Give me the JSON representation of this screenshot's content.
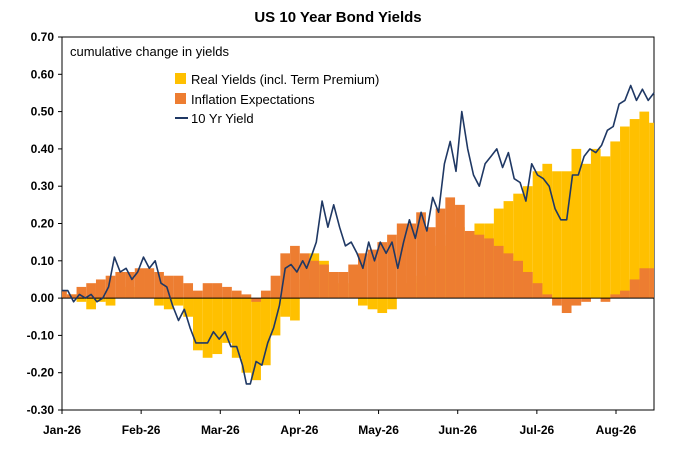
{
  "chart_data": {
    "type": "area",
    "title": "US 10 Year Bond Yields",
    "annotation": "cumulative change in yields",
    "xlabel": "",
    "ylabel": "",
    "ylim": [
      -0.3,
      0.7
    ],
    "yticks": [
      "-0.30",
      "-0.20",
      "-0.10",
      "0.00",
      "0.10",
      "0.20",
      "0.30",
      "0.40",
      "0.50",
      "0.60",
      "0.70"
    ],
    "xticks": [
      "Jan-26",
      "Feb-26",
      "Mar-26",
      "Apr-26",
      "May-26",
      "Jun-26",
      "Jul-26",
      "Aug-26"
    ],
    "grid": false,
    "legend_position": "top-center",
    "colors": {
      "real": "#FFC000",
      "inflation": "#ED7D31",
      "yield": "#1F3864"
    },
    "series": [
      {
        "name": "Real Yields (incl. Term Premium)",
        "kind": "bar",
        "points": [
          [
            0,
            0.0
          ],
          [
            5,
            0.01
          ],
          [
            10,
            -0.01
          ],
          [
            15,
            -0.03
          ],
          [
            20,
            -0.01
          ],
          [
            25,
            -0.02
          ],
          [
            30,
            0.0
          ],
          [
            35,
            0.03
          ],
          [
            40,
            0.02
          ],
          [
            45,
            0.0
          ],
          [
            50,
            -0.02
          ],
          [
            55,
            -0.03
          ],
          [
            60,
            -0.02
          ],
          [
            65,
            -0.05
          ],
          [
            70,
            -0.14
          ],
          [
            75,
            -0.16
          ],
          [
            80,
            -0.15
          ],
          [
            85,
            -0.12
          ],
          [
            90,
            -0.16
          ],
          [
            95,
            -0.2
          ],
          [
            100,
            -0.22
          ],
          [
            105,
            -0.18
          ],
          [
            110,
            -0.1
          ],
          [
            115,
            -0.05
          ],
          [
            120,
            -0.06
          ],
          [
            125,
            0.05
          ],
          [
            130,
            0.12
          ],
          [
            135,
            0.1
          ],
          [
            140,
            0.04
          ],
          [
            145,
            0.04
          ],
          [
            150,
            0.0
          ],
          [
            155,
            -0.02
          ],
          [
            160,
            -0.03
          ],
          [
            165,
            -0.04
          ],
          [
            170,
            -0.03
          ],
          [
            175,
            0.0
          ],
          [
            180,
            0.04
          ],
          [
            185,
            0.06
          ],
          [
            190,
            0.1
          ],
          [
            195,
            0.14
          ],
          [
            200,
            0.17
          ],
          [
            205,
            0.19
          ],
          [
            210,
            0.17
          ],
          [
            215,
            0.2
          ],
          [
            220,
            0.2
          ],
          [
            225,
            0.24
          ],
          [
            230,
            0.26
          ],
          [
            235,
            0.28
          ],
          [
            240,
            0.3
          ],
          [
            245,
            0.34
          ],
          [
            250,
            0.36
          ],
          [
            255,
            0.34
          ],
          [
            260,
            0.34
          ],
          [
            265,
            0.4
          ],
          [
            270,
            0.36
          ],
          [
            275,
            0.4
          ],
          [
            280,
            0.38
          ],
          [
            285,
            0.42
          ],
          [
            290,
            0.46
          ],
          [
            295,
            0.48
          ],
          [
            300,
            0.5
          ],
          [
            305,
            0.47
          ]
        ]
      },
      {
        "name": "Inflation Expectations",
        "kind": "bar",
        "points": [
          [
            0,
            0.02
          ],
          [
            5,
            0.01
          ],
          [
            10,
            0.03
          ],
          [
            15,
            0.04
          ],
          [
            20,
            0.05
          ],
          [
            25,
            0.06
          ],
          [
            30,
            0.07
          ],
          [
            35,
            0.07
          ],
          [
            40,
            0.08
          ],
          [
            45,
            0.08
          ],
          [
            50,
            0.07
          ],
          [
            55,
            0.06
          ],
          [
            60,
            0.06
          ],
          [
            65,
            0.04
          ],
          [
            70,
            0.02
          ],
          [
            75,
            0.04
          ],
          [
            80,
            0.04
          ],
          [
            85,
            0.03
          ],
          [
            90,
            0.02
          ],
          [
            95,
            0.01
          ],
          [
            100,
            -0.01
          ],
          [
            105,
            0.02
          ],
          [
            110,
            0.06
          ],
          [
            115,
            0.12
          ],
          [
            120,
            0.14
          ],
          [
            125,
            0.12
          ],
          [
            130,
            0.1
          ],
          [
            135,
            0.09
          ],
          [
            140,
            0.07
          ],
          [
            145,
            0.07
          ],
          [
            150,
            0.09
          ],
          [
            155,
            0.12
          ],
          [
            160,
            0.13
          ],
          [
            165,
            0.15
          ],
          [
            170,
            0.17
          ],
          [
            175,
            0.2
          ],
          [
            180,
            0.2
          ],
          [
            185,
            0.23
          ],
          [
            190,
            0.19
          ],
          [
            195,
            0.24
          ],
          [
            200,
            0.27
          ],
          [
            205,
            0.25
          ],
          [
            210,
            0.18
          ],
          [
            215,
            0.17
          ],
          [
            220,
            0.16
          ],
          [
            225,
            0.14
          ],
          [
            230,
            0.12
          ],
          [
            235,
            0.1
          ],
          [
            240,
            0.07
          ],
          [
            245,
            0.04
          ],
          [
            250,
            0.01
          ],
          [
            255,
            -0.02
          ],
          [
            260,
            -0.04
          ],
          [
            265,
            -0.02
          ],
          [
            270,
            -0.01
          ],
          [
            275,
            0.0
          ],
          [
            280,
            -0.01
          ],
          [
            285,
            0.01
          ],
          [
            290,
            0.02
          ],
          [
            295,
            0.05
          ],
          [
            300,
            0.08
          ],
          [
            305,
            0.08
          ]
        ]
      },
      {
        "name": "10 Yr Yield",
        "kind": "line",
        "points": [
          [
            0,
            0.02
          ],
          [
            3,
            0.02
          ],
          [
            6,
            -0.01
          ],
          [
            9,
            0.01
          ],
          [
            12,
            0.0
          ],
          [
            15,
            0.01
          ],
          [
            18,
            -0.01
          ],
          [
            21,
            0.0
          ],
          [
            24,
            0.03
          ],
          [
            27,
            0.11
          ],
          [
            30,
            0.07
          ],
          [
            33,
            0.08
          ],
          [
            36,
            0.05
          ],
          [
            39,
            0.07
          ],
          [
            42,
            0.11
          ],
          [
            45,
            0.08
          ],
          [
            48,
            0.1
          ],
          [
            51,
            0.04
          ],
          [
            54,
            0.03
          ],
          [
            57,
            -0.02
          ],
          [
            60,
            -0.06
          ],
          [
            63,
            -0.03
          ],
          [
            66,
            -0.08
          ],
          [
            69,
            -0.12
          ],
          [
            72,
            -0.12
          ],
          [
            75,
            -0.12
          ],
          [
            78,
            -0.09
          ],
          [
            81,
            -0.11
          ],
          [
            84,
            -0.09
          ],
          [
            87,
            -0.13
          ],
          [
            90,
            -0.13
          ],
          [
            93,
            -0.18
          ],
          [
            95,
            -0.23
          ],
          [
            97,
            -0.23
          ],
          [
            100,
            -0.17
          ],
          [
            103,
            -0.18
          ],
          [
            106,
            -0.12
          ],
          [
            109,
            -0.08
          ],
          [
            112,
            -0.02
          ],
          [
            115,
            0.08
          ],
          [
            118,
            0.09
          ],
          [
            121,
            0.07
          ],
          [
            124,
            0.1
          ],
          [
            126,
            0.08
          ],
          [
            129,
            0.12
          ],
          [
            131,
            0.15
          ],
          [
            134,
            0.26
          ],
          [
            137,
            0.19
          ],
          [
            140,
            0.25
          ],
          [
            143,
            0.19
          ],
          [
            146,
            0.14
          ],
          [
            149,
            0.15
          ],
          [
            152,
            0.12
          ],
          [
            155,
            0.08
          ],
          [
            158,
            0.15
          ],
          [
            161,
            0.1
          ],
          [
            164,
            0.15
          ],
          [
            167,
            0.12
          ],
          [
            170,
            0.15
          ],
          [
            173,
            0.08
          ],
          [
            176,
            0.15
          ],
          [
            179,
            0.21
          ],
          [
            182,
            0.16
          ],
          [
            185,
            0.23
          ],
          [
            188,
            0.18
          ],
          [
            191,
            0.27
          ],
          [
            194,
            0.23
          ],
          [
            197,
            0.36
          ],
          [
            200,
            0.42
          ],
          [
            203,
            0.34
          ],
          [
            206,
            0.5
          ],
          [
            209,
            0.4
          ],
          [
            212,
            0.33
          ],
          [
            215,
            0.3
          ],
          [
            218,
            0.36
          ],
          [
            221,
            0.38
          ],
          [
            224,
            0.4
          ],
          [
            227,
            0.35
          ],
          [
            230,
            0.39
          ],
          [
            233,
            0.32
          ],
          [
            236,
            0.31
          ],
          [
            239,
            0.26
          ],
          [
            242,
            0.36
          ],
          [
            245,
            0.33
          ],
          [
            248,
            0.32
          ],
          [
            251,
            0.3
          ],
          [
            254,
            0.24
          ],
          [
            257,
            0.21
          ],
          [
            260,
            0.21
          ],
          [
            263,
            0.33
          ],
          [
            266,
            0.33
          ],
          [
            269,
            0.38
          ],
          [
            272,
            0.4
          ],
          [
            275,
            0.39
          ],
          [
            278,
            0.41
          ],
          [
            281,
            0.45
          ],
          [
            284,
            0.46
          ],
          [
            287,
            0.52
          ],
          [
            290,
            0.53
          ],
          [
            293,
            0.57
          ],
          [
            296,
            0.53
          ],
          [
            299,
            0.56
          ],
          [
            302,
            0.53
          ],
          [
            305,
            0.55
          ]
        ]
      }
    ]
  }
}
